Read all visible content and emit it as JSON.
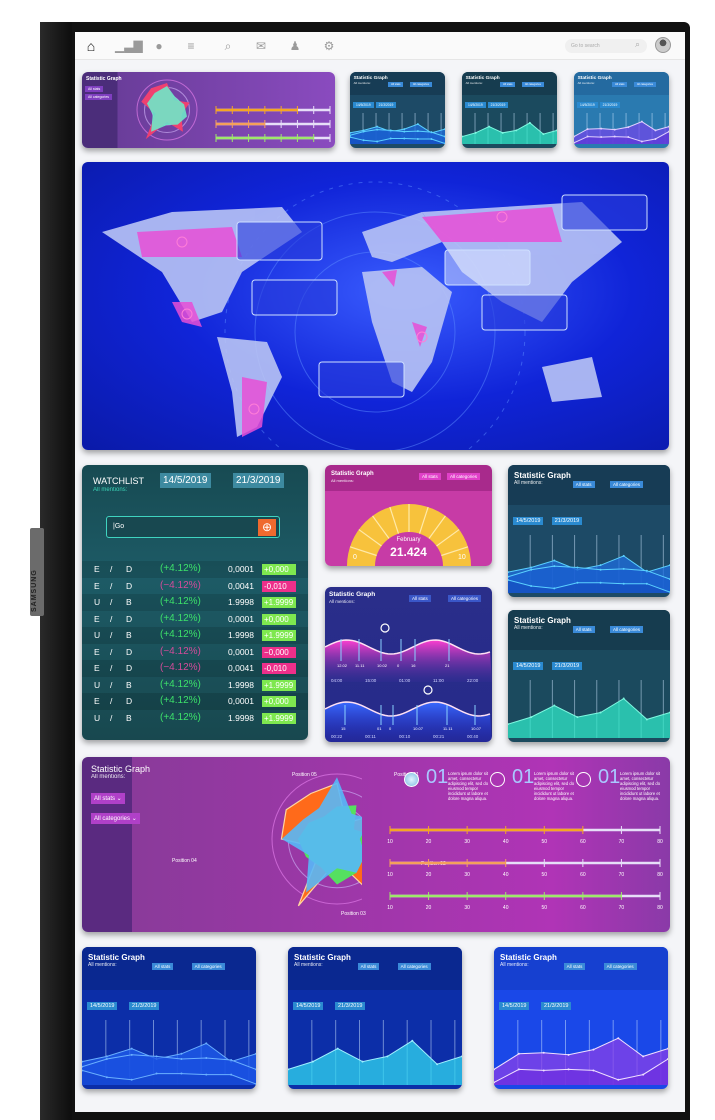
{
  "device": {
    "brand": "SAMSUNG"
  },
  "nav": {
    "icons": [
      "home-icon",
      "bar-chart-icon",
      "chat-icon",
      "tasks-icon",
      "search-icon",
      "mail-icon",
      "users-icon",
      "gear-icon"
    ],
    "search_placeholder": "Go to search"
  },
  "common": {
    "title": "Statistic Graph",
    "subtitle": "All mentions:",
    "all_stats": "All stats",
    "all_categories": "All categories",
    "date1": "14/5/2019",
    "date2": "21/3/2019"
  },
  "watchlist": {
    "title": "WATCHLIST",
    "subtitle": "All mentions:",
    "date1": "14/5/2019",
    "date2": "21/3/2019",
    "input_value": "|Go",
    "rows": [
      {
        "pair": [
          "E",
          "/",
          "D"
        ],
        "change": "(+4.12%)",
        "value": "0,0001",
        "delta": "+0,000",
        "positive": true
      },
      {
        "pair": [
          "E",
          "/",
          "D"
        ],
        "change": "(−4.12%)",
        "value": "0,0041",
        "delta": "-0,010",
        "positive": false
      },
      {
        "pair": [
          "U",
          "/",
          "B"
        ],
        "change": "(+4.12%)",
        "value": "1.9998",
        "delta": "+1.9999",
        "positive": true
      },
      {
        "pair": [
          "E",
          "/",
          "D"
        ],
        "change": "(+4.12%)",
        "value": "0,0001",
        "delta": "+0,000",
        "positive": true
      },
      {
        "pair": [
          "U",
          "/",
          "B"
        ],
        "change": "(+4.12%)",
        "value": "1.9998",
        "delta": "+1.9999",
        "positive": true
      },
      {
        "pair": [
          "E",
          "/",
          "D"
        ],
        "change": "(−4.12%)",
        "value": "0,0001",
        "delta": "−0,000",
        "positive": false
      },
      {
        "pair": [
          "E",
          "/",
          "D"
        ],
        "change": "(−4.12%)",
        "value": "0,0041",
        "delta": "-0,010",
        "positive": false
      },
      {
        "pair": [
          "U",
          "/",
          "B"
        ],
        "change": "(+4.12%)",
        "value": "1.9998",
        "delta": "+1.9999",
        "positive": true
      },
      {
        "pair": [
          "E",
          "/",
          "D"
        ],
        "change": "(+4.12%)",
        "value": "0,0001",
        "delta": "+0,000",
        "positive": true
      },
      {
        "pair": [
          "U",
          "/",
          "B"
        ],
        "change": "(+4.12%)",
        "value": "1.9998",
        "delta": "+1.9999",
        "positive": true
      }
    ]
  },
  "gauge": {
    "month": "February",
    "value": "21.424",
    "min": "0",
    "max": "10",
    "level": 0.5
  },
  "waves": {
    "top_labels": [
      "12.02",
      "11.11",
      "10.02",
      "0",
      "16",
      "21"
    ],
    "top_times": [
      "04:00",
      "15:00",
      "01:00",
      "11:00",
      "22:00"
    ],
    "bottom_labels": [
      "15",
      "01",
      "0",
      "10.07",
      "11.11",
      "10.07"
    ],
    "bottom_times": [
      "00:22",
      "00:11",
      "00:10",
      "00:21",
      "00:40"
    ]
  },
  "radar": {
    "positions": [
      "Position 01",
      "Position 02",
      "Position 03",
      "Position 04",
      "Position 05"
    ],
    "items": [
      {
        "num": "01",
        "text": "Lorem ipsum dolor sit amet, consectetur adipiscing elit, sed do eiusmod tempor incididunt ut labore et dolore magna aliqua."
      },
      {
        "num": "01",
        "text": "Lorem ipsum dolor sit amet, consectetur adipiscing elit, sed do eiusmod tempor incididunt ut labore et dolore magna aliqua."
      },
      {
        "num": "01",
        "text": "Lorem ipsum dolor sit amet, consectetur adipiscing elit, sed do eiusmod tempor incididunt ut labore et dolore magna aliqua."
      }
    ],
    "ticks": [
      "10",
      "20",
      "30",
      "40",
      "50",
      "60",
      "70",
      "80"
    ],
    "sliders": [
      {
        "value": 60,
        "color": "#f5a623"
      },
      {
        "value": 40,
        "color": "#f5a05a"
      },
      {
        "value": 70,
        "color": "#9ee86a"
      }
    ]
  },
  "area_series": {
    "a": [
      [
        0.45,
        0.55,
        0.7,
        0.5,
        0.6,
        0.8,
        0.45,
        0.6
      ],
      [
        0.35,
        0.5,
        0.58,
        0.55,
        0.5,
        0.52,
        0.48,
        0.3
      ],
      [
        0.28,
        0.15,
        0.1,
        0.22,
        0.22,
        0.2,
        0.2,
        0.02
      ]
    ],
    "b": [
      [
        0.3,
        0.45,
        0.7,
        0.45,
        0.55,
        0.85,
        0.4,
        0.55
      ]
    ],
    "c": [
      [
        0.3,
        0.6,
        0.62,
        0.58,
        0.68,
        0.9,
        0.55,
        0.7
      ],
      [
        0.05,
        0.3,
        0.28,
        0.3,
        0.28,
        0.1,
        0.2,
        0.5
      ]
    ]
  },
  "colors": {
    "teal_card": "#1c4f62",
    "blue_card": "#0a3bc8",
    "magenta": "#c0339f",
    "purple": "#7d3aa0",
    "gauge": "#f7c23c"
  }
}
